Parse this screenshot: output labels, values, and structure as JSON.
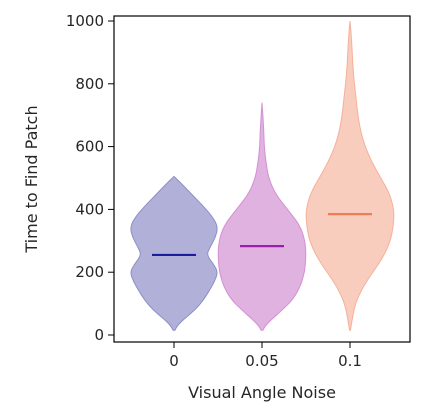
{
  "chart_data": {
    "type": "violin",
    "xlabel": "Visual Angle Noise",
    "ylabel": "Time to Find Patch",
    "categories": [
      "0",
      "0.05",
      "0.1"
    ],
    "ylim": [
      -10,
      1020
    ],
    "yticks": [
      0,
      200,
      400,
      600,
      800,
      1000
    ],
    "grid": false,
    "series": [
      {
        "category": "0",
        "fill": "#b0b0d9",
        "stroke": "#8e8ec9",
        "median_color": "#1c1c9e",
        "median": 255,
        "min": 15,
        "max": 505,
        "profile": [
          [
            15,
            0.02
          ],
          [
            30,
            0.08
          ],
          [
            50,
            0.22
          ],
          [
            80,
            0.48
          ],
          [
            110,
            0.66
          ],
          [
            140,
            0.8
          ],
          [
            170,
            0.92
          ],
          [
            200,
            1.0
          ],
          [
            225,
            0.9
          ],
          [
            255,
            0.74
          ],
          [
            280,
            0.82
          ],
          [
            310,
            0.94
          ],
          [
            345,
            1.0
          ],
          [
            380,
            0.86
          ],
          [
            420,
            0.6
          ],
          [
            460,
            0.32
          ],
          [
            485,
            0.15
          ],
          [
            505,
            0.0
          ]
        ]
      },
      {
        "category": "0.05",
        "fill": "#e0b2e0",
        "stroke": "#d48fd4",
        "median_color": "#9b1fa8",
        "median": 283,
        "min": 15,
        "max": 740,
        "profile": [
          [
            15,
            0.02
          ],
          [
            30,
            0.08
          ],
          [
            50,
            0.22
          ],
          [
            80,
            0.46
          ],
          [
            110,
            0.68
          ],
          [
            150,
            0.86
          ],
          [
            200,
            0.97
          ],
          [
            250,
            1.0
          ],
          [
            300,
            0.98
          ],
          [
            350,
            0.86
          ],
          [
            400,
            0.58
          ],
          [
            450,
            0.3
          ],
          [
            500,
            0.15
          ],
          [
            550,
            0.09
          ],
          [
            600,
            0.05
          ],
          [
            650,
            0.04
          ],
          [
            700,
            0.02
          ],
          [
            740,
            0.0
          ]
        ]
      },
      {
        "category": "0.1",
        "fill": "#f9cdbd",
        "stroke": "#f4b09a",
        "median_color": "#ee7d53",
        "median": 385,
        "min": 15,
        "max": 1000,
        "profile": [
          [
            15,
            0.01
          ],
          [
            50,
            0.05
          ],
          [
            100,
            0.12
          ],
          [
            150,
            0.28
          ],
          [
            200,
            0.52
          ],
          [
            250,
            0.76
          ],
          [
            300,
            0.92
          ],
          [
            350,
            0.99
          ],
          [
            400,
            1.0
          ],
          [
            450,
            0.9
          ],
          [
            500,
            0.7
          ],
          [
            550,
            0.5
          ],
          [
            600,
            0.34
          ],
          [
            650,
            0.24
          ],
          [
            700,
            0.18
          ],
          [
            750,
            0.14
          ],
          [
            800,
            0.1
          ],
          [
            850,
            0.07
          ],
          [
            900,
            0.05
          ],
          [
            950,
            0.03
          ],
          [
            1000,
            0.0
          ]
        ]
      }
    ]
  }
}
